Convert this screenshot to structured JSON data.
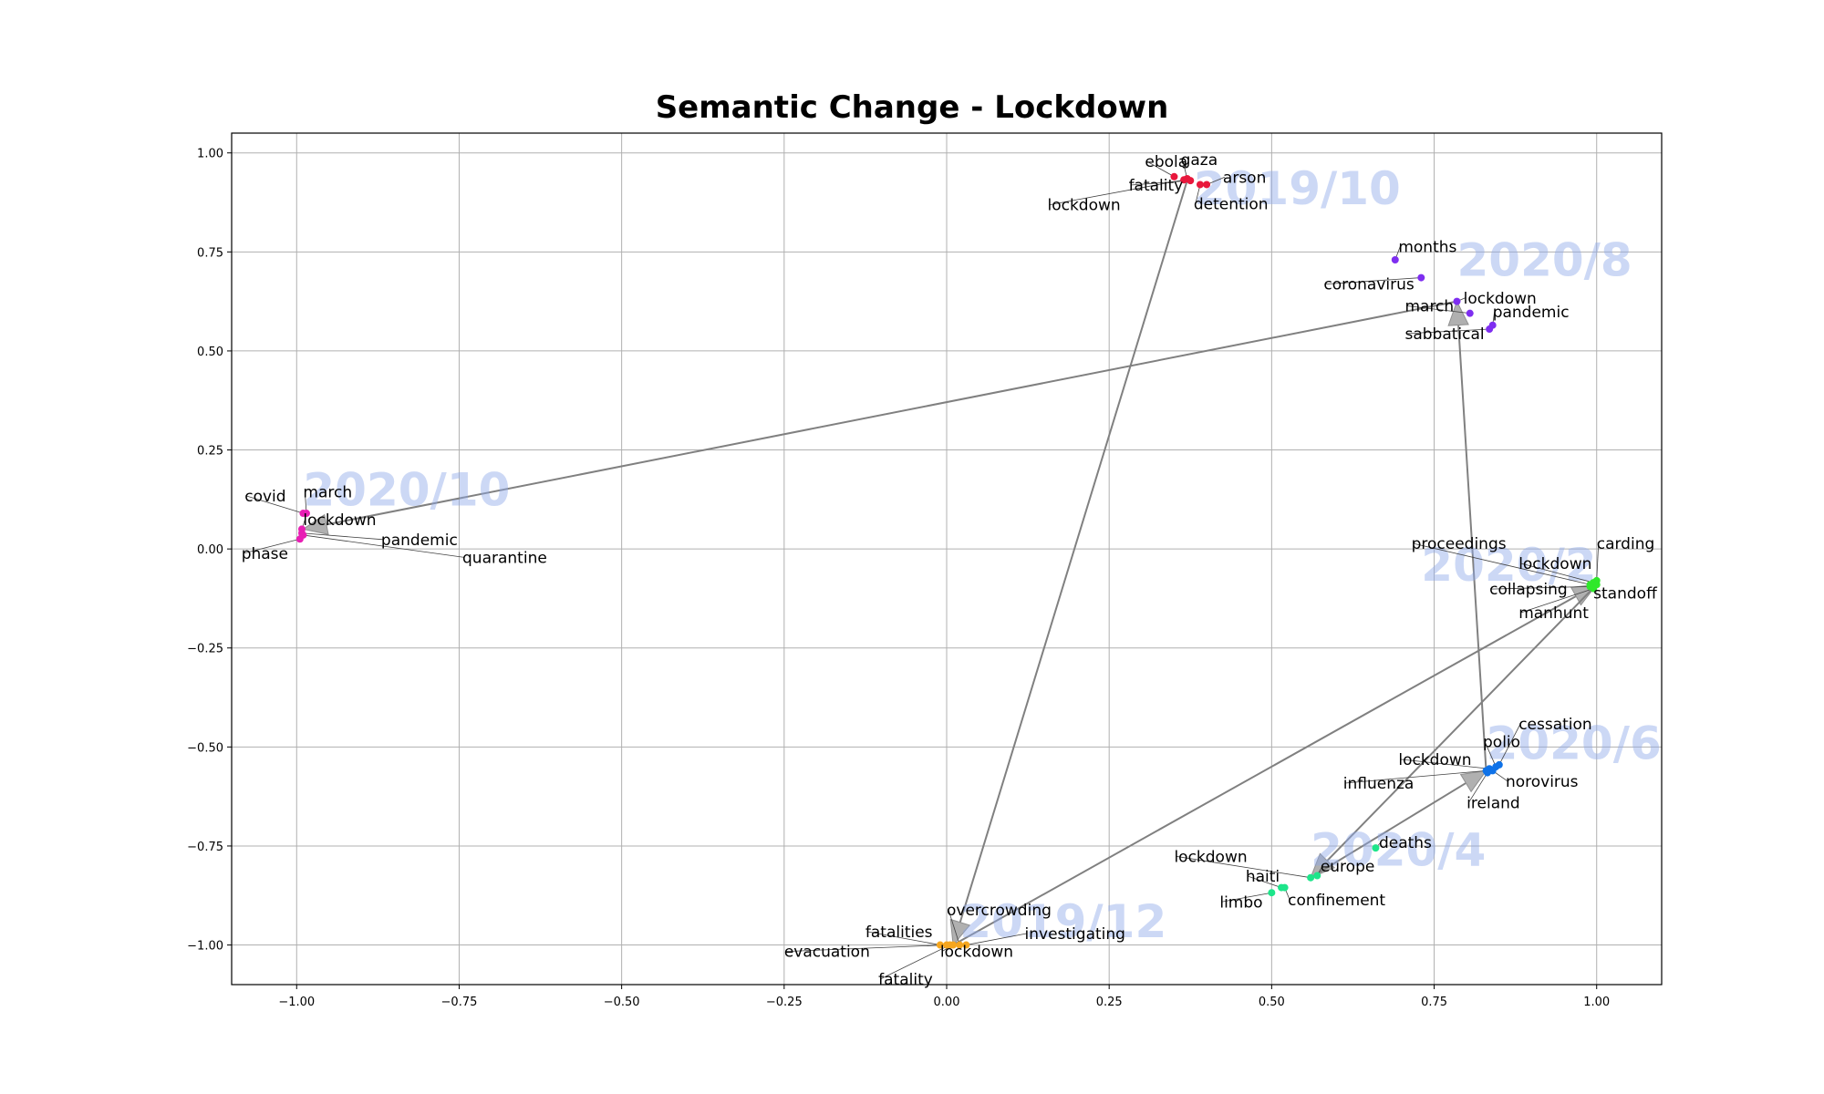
{
  "chart_data": {
    "type": "scatter",
    "title": "Semantic Change - Lockdown",
    "xlabel": "",
    "ylabel": "",
    "xlim": [
      -1.1,
      1.1
    ],
    "ylim": [
      -1.1,
      1.05
    ],
    "grid": true,
    "x_ticks": [
      -1.0,
      -0.75,
      -0.5,
      -0.25,
      0.0,
      0.25,
      0.5,
      0.75,
      1.0
    ],
    "x_tick_labels": [
      "−1.00",
      "−0.75",
      "−0.50",
      "−0.25",
      "0.00",
      "0.25",
      "0.50",
      "0.75",
      "1.00"
    ],
    "y_ticks": [
      -1.0,
      -0.75,
      -0.5,
      -0.25,
      0.0,
      0.25,
      0.5,
      0.75,
      1.0
    ],
    "y_tick_labels": [
      "−1.00",
      "−0.75",
      "−0.50",
      "−0.25",
      "0.00",
      "0.25",
      "0.50",
      "0.75",
      "1.00"
    ],
    "periods": [
      {
        "label": "2019/10",
        "color": "#e8173c",
        "label_pos": [
          0.38,
          0.87
        ],
        "anchor": [
          0.37,
          0.93
        ],
        "points": [
          {
            "word": "ebola",
            "x": 0.35,
            "y": 0.94,
            "label": [
              0.305,
              0.965
            ]
          },
          {
            "word": "gaza",
            "x": 0.37,
            "y": 0.935,
            "label": [
              0.36,
              0.97
            ]
          },
          {
            "word": "arson",
            "x": 0.4,
            "y": 0.92,
            "label": [
              0.425,
              0.925
            ]
          },
          {
            "word": "fatality",
            "x": 0.375,
            "y": 0.93,
            "label": [
              0.28,
              0.905
            ]
          },
          {
            "word": "lockdown",
            "x": 0.365,
            "y": 0.932,
            "label": [
              0.155,
              0.855
            ]
          },
          {
            "word": "detention",
            "x": 0.39,
            "y": 0.92,
            "label": [
              0.38,
              0.858
            ]
          }
        ]
      },
      {
        "label": "2019/12",
        "color": "#f5a61f",
        "label_pos": [
          0.02,
          -0.98
        ],
        "anchor": [
          0.01,
          -1.0
        ],
        "points": [
          {
            "word": "overcrowding",
            "x": 0.02,
            "y": -1.0,
            "label": [
              0.0,
              -0.925
            ]
          },
          {
            "word": "fatalities",
            "x": -0.01,
            "y": -1.0,
            "label": [
              -0.125,
              -0.98
            ]
          },
          {
            "word": "investigating",
            "x": 0.03,
            "y": -1.0,
            "label": [
              0.12,
              -0.985
            ]
          },
          {
            "word": "evacuation",
            "x": 0.0,
            "y": -1.0,
            "label": [
              -0.25,
              -1.03
            ]
          },
          {
            "word": "lockdown",
            "x": 0.01,
            "y": -1.0,
            "label": [
              -0.01,
              -1.03
            ]
          },
          {
            "word": "fatality",
            "x": 0.005,
            "y": -1.0,
            "label": [
              -0.105,
              -1.1
            ]
          }
        ]
      },
      {
        "label": "2020/2",
        "color": "#2fe82a",
        "label_pos": [
          0.73,
          -0.08
        ],
        "anchor": [
          1.0,
          -0.09
        ],
        "points": [
          {
            "word": "proceedings",
            "x": 0.99,
            "y": -0.09,
            "label": [
              0.715,
              0.0
            ]
          },
          {
            "word": "carding",
            "x": 1.0,
            "y": -0.08,
            "label": [
              1.0,
              0.0
            ]
          },
          {
            "word": "lockdown",
            "x": 0.995,
            "y": -0.085,
            "label": [
              0.88,
              -0.05
            ]
          },
          {
            "word": "collapsing",
            "x": 0.99,
            "y": -0.095,
            "label": [
              0.835,
              -0.115
            ]
          },
          {
            "word": "standoff",
            "x": 1.0,
            "y": -0.09,
            "label": [
              0.995,
              -0.125
            ]
          },
          {
            "word": "manhunt",
            "x": 0.995,
            "y": -0.1,
            "label": [
              0.88,
              -0.175
            ]
          }
        ]
      },
      {
        "label": "2020/4",
        "color": "#1de58a",
        "label_pos": [
          0.56,
          -0.8
        ],
        "anchor": [
          0.56,
          -0.83
        ],
        "points": [
          {
            "word": "deaths",
            "x": 0.66,
            "y": -0.755,
            "label": [
              0.665,
              -0.755
            ]
          },
          {
            "word": "lockdown",
            "x": 0.56,
            "y": -0.83,
            "label": [
              0.35,
              -0.79
            ]
          },
          {
            "word": "europe",
            "x": 0.57,
            "y": -0.825,
            "label": [
              0.575,
              -0.815
            ]
          },
          {
            "word": "haiti",
            "x": 0.515,
            "y": -0.855,
            "label": [
              0.46,
              -0.84
            ]
          },
          {
            "word": "confinement",
            "x": 0.52,
            "y": -0.855,
            "label": [
              0.525,
              -0.9
            ]
          },
          {
            "word": "limbo",
            "x": 0.5,
            "y": -0.868,
            "label": [
              0.42,
              -0.905
            ]
          }
        ]
      },
      {
        "label": "2020/6",
        "color": "#0f72e8",
        "label_pos": [
          0.83,
          -0.53
        ],
        "anchor": [
          0.83,
          -0.56
        ],
        "points": [
          {
            "word": "cessation",
            "x": 0.85,
            "y": -0.545,
            "label": [
              0.88,
              -0.455
            ]
          },
          {
            "word": "polio",
            "x": 0.845,
            "y": -0.55,
            "label": [
              0.825,
              -0.5
            ]
          },
          {
            "word": "lockdown",
            "x": 0.835,
            "y": -0.555,
            "label": [
              0.695,
              -0.545
            ]
          },
          {
            "word": "norovirus",
            "x": 0.84,
            "y": -0.56,
            "label": [
              0.86,
              -0.6
            ]
          },
          {
            "word": "influenza",
            "x": 0.83,
            "y": -0.56,
            "label": [
              0.61,
              -0.605
            ]
          },
          {
            "word": "ireland",
            "x": 0.832,
            "y": -0.565,
            "label": [
              0.8,
              -0.655
            ]
          }
        ]
      },
      {
        "label": "2020/8",
        "color": "#7e2ef0",
        "label_pos": [
          0.785,
          0.69
        ],
        "anchor": [
          0.785,
          0.625
        ],
        "points": [
          {
            "word": "months",
            "x": 0.69,
            "y": 0.73,
            "label": [
              0.695,
              0.75
            ]
          },
          {
            "word": "coronavirus",
            "x": 0.73,
            "y": 0.685,
            "label": [
              0.58,
              0.655
            ]
          },
          {
            "word": "lockdown",
            "x": 0.785,
            "y": 0.625,
            "label": [
              0.795,
              0.62
            ]
          },
          {
            "word": "march",
            "x": 0.805,
            "y": 0.595,
            "label": [
              0.705,
              0.6
            ]
          },
          {
            "word": "pandemic",
            "x": 0.84,
            "y": 0.565,
            "label": [
              0.84,
              0.585
            ]
          },
          {
            "word": "sabbatical",
            "x": 0.835,
            "y": 0.555,
            "label": [
              0.705,
              0.53
            ]
          }
        ]
      },
      {
        "label": "2020/10",
        "color": "#e81fb4",
        "label_pos": [
          -0.99,
          0.11
        ],
        "anchor": [
          -0.99,
          0.05
        ],
        "points": [
          {
            "word": "covid",
            "x": -0.99,
            "y": 0.09,
            "label": [
              -1.08,
              0.12
            ]
          },
          {
            "word": "march",
            "x": -0.985,
            "y": 0.09,
            "label": [
              -0.99,
              0.13
            ]
          },
          {
            "word": "lockdown",
            "x": -0.992,
            "y": 0.05,
            "label": [
              -0.99,
              0.06
            ]
          },
          {
            "word": "pandemic",
            "x": -0.992,
            "y": 0.04,
            "label": [
              -0.87,
              0.01
            ]
          },
          {
            "word": "phase",
            "x": -0.995,
            "y": 0.025,
            "label": [
              -1.085,
              -0.025
            ]
          },
          {
            "word": "quarantine",
            "x": -0.99,
            "y": 0.035,
            "label": [
              -0.745,
              -0.035
            ]
          }
        ]
      }
    ],
    "trajectory": [
      "2019/10",
      "2019/12",
      "2020/2",
      "2020/4",
      "2020/6",
      "2020/8",
      "2020/10"
    ]
  }
}
